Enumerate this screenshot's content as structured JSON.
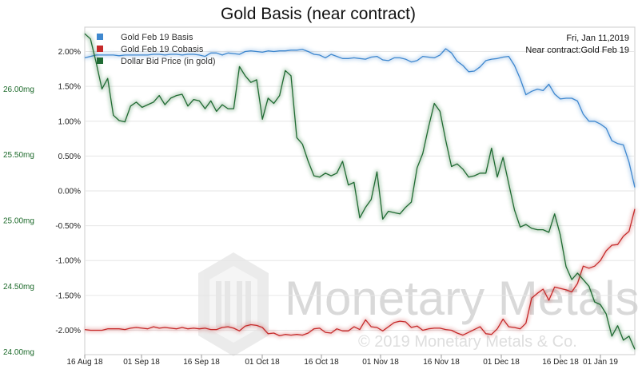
{
  "chart_data": {
    "type": "line",
    "title": "Gold Basis (near contract)",
    "x_ticks": [
      "16 Aug 18",
      "01 Sep 18",
      "16 Sep 18",
      "01 Oct 18",
      "16 Oct 18",
      "01 Nov 18",
      "16 Nov 18",
      "01 Dec 18",
      "16 Dec 18",
      "01 Jan 19"
    ],
    "y_right": {
      "ticks": [
        "2.00%",
        "1.50%",
        "1.00%",
        "0.50%",
        "0.00%",
        "-0.50%",
        "-1.00%",
        "-1.50%",
        "-2.00%"
      ],
      "range": [
        -2.35,
        2.35
      ]
    },
    "y_left": {
      "ticks": [
        "26.00mg",
        "25.50mg",
        "25.00mg",
        "24.50mg",
        "24.00mg"
      ],
      "range": [
        23.98,
        26.47
      ]
    },
    "legend_position": "top-left",
    "grid": "horizontal",
    "info": {
      "date": "Fri, Jan 11,2019",
      "contract": "Near contract:Gold Feb 19"
    },
    "watermark": {
      "brand": "Monetary Metals",
      "copyright": "© 2019 Monetary Metals & Co."
    },
    "series": [
      {
        "name": "Gold Feb 19 Basis",
        "color": "#3f88cf",
        "axis": "right",
        "unit": "%",
        "values": [
          1.91,
          1.93,
          1.95,
          1.95,
          1.95,
          1.95,
          1.94,
          1.95,
          1.95,
          1.95,
          1.95,
          1.95,
          1.96,
          1.96,
          1.95,
          1.96,
          1.96,
          1.95,
          1.96,
          1.96,
          1.95,
          1.93,
          1.98,
          1.98,
          1.95,
          1.98,
          1.97,
          1.96,
          2.0,
          2.01,
          2.0,
          1.99,
          2.01,
          2.0,
          2.01,
          2.01,
          2.02,
          2.02,
          2.03,
          2.0,
          1.96,
          1.95,
          1.91,
          1.96,
          1.93,
          1.9,
          1.9,
          1.91,
          1.9,
          1.89,
          1.92,
          1.93,
          1.88,
          1.87,
          1.91,
          1.91,
          1.89,
          1.85,
          1.87,
          1.93,
          1.92,
          1.91,
          1.95,
          2.04,
          1.98,
          1.86,
          1.8,
          1.71,
          1.72,
          1.78,
          1.87,
          1.89,
          1.9,
          1.92,
          1.93,
          1.8,
          1.61,
          1.38,
          1.43,
          1.46,
          1.44,
          1.53,
          1.39,
          1.32,
          1.33,
          1.33,
          1.29,
          1.1,
          1.0,
          1.0,
          0.96,
          0.9,
          0.72,
          0.68,
          0.66,
          0.41,
          0.05
        ]
      },
      {
        "name": "Gold Feb 19 Cobasis",
        "color": "#c62a2a",
        "axis": "right",
        "unit": "%",
        "values": [
          -1.99,
          -2.0,
          -2.0,
          -2.0,
          -1.98,
          -1.98,
          -1.98,
          -1.99,
          -1.97,
          -1.96,
          -1.97,
          -1.98,
          -1.95,
          -1.97,
          -1.96,
          -1.97,
          -1.98,
          -1.96,
          -1.98,
          -1.97,
          -1.98,
          -1.97,
          -1.99,
          -1.99,
          -1.96,
          -1.95,
          -1.97,
          -2.01,
          -1.94,
          -1.92,
          -1.93,
          -1.96,
          -2.05,
          -2.04,
          -2.08,
          -2.06,
          -2.07,
          -2.06,
          -2.07,
          -2.04,
          -1.98,
          -1.97,
          -2.03,
          -2.04,
          -1.98,
          -2.01,
          -2.01,
          -1.95,
          -1.99,
          -1.85,
          -1.95,
          -1.96,
          -2.01,
          -1.95,
          -1.89,
          -1.87,
          -1.88,
          -1.96,
          -1.94,
          -2.0,
          -1.98,
          -1.97,
          -1.97,
          -1.99,
          -2.0,
          -2.04,
          -2.07,
          -2.03,
          -1.99,
          -1.95,
          -2.05,
          -2.06,
          -1.98,
          -1.84,
          -1.95,
          -1.96,
          -1.98,
          -1.9,
          -1.54,
          -1.47,
          -1.41,
          -1.57,
          -1.38,
          -1.4,
          -1.42,
          -1.45,
          -1.33,
          -1.08,
          -1.11,
          -1.08,
          -1.0,
          -0.86,
          -0.78,
          -0.77,
          -0.65,
          -0.58,
          -0.26
        ]
      },
      {
        "name": "Dollar Bid Price (in gold)",
        "color": "#1f6b33",
        "axis": "left",
        "unit": "mg",
        "values": [
          26.42,
          26.38,
          26.2,
          26.0,
          26.08,
          25.8,
          25.76,
          25.75,
          25.87,
          25.9,
          25.86,
          25.88,
          25.9,
          25.95,
          25.88,
          25.93,
          25.95,
          25.96,
          25.87,
          25.92,
          25.91,
          25.85,
          25.91,
          25.83,
          25.88,
          25.85,
          25.85,
          26.17,
          26.1,
          26.05,
          26.07,
          25.77,
          25.93,
          25.89,
          25.95,
          26.14,
          26.1,
          25.63,
          25.58,
          25.45,
          25.34,
          25.33,
          25.36,
          25.34,
          25.36,
          25.45,
          25.27,
          25.29,
          25.02,
          25.1,
          25.16,
          25.37,
          25.01,
          25.07,
          25.06,
          25.05,
          25.1,
          25.14,
          25.4,
          25.51,
          25.71,
          25.89,
          25.83,
          25.61,
          25.41,
          25.43,
          25.39,
          25.33,
          25.34,
          25.36,
          25.36,
          25.55,
          25.33,
          25.48,
          25.28,
          25.08,
          24.95,
          24.97,
          24.94,
          24.93,
          24.93,
          24.91,
          25.05,
          24.89,
          24.65,
          24.55,
          24.6,
          24.55,
          24.5,
          24.38,
          24.36,
          24.29,
          24.12,
          24.2,
          24.09,
          24.12,
          24.02
        ]
      }
    ]
  }
}
